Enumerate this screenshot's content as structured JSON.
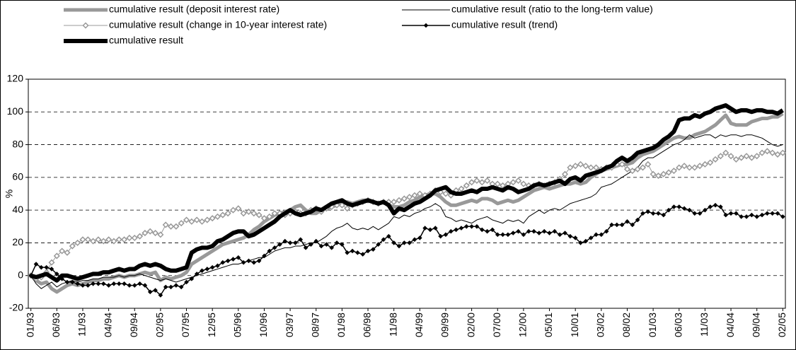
{
  "chart_data": {
    "type": "line",
    "y_label": "%",
    "ylim": [
      -20,
      120
    ],
    "yticks": [
      -20,
      0,
      20,
      40,
      60,
      80,
      100,
      120
    ],
    "grid": true,
    "categories": [
      "01/93",
      null,
      null,
      null,
      null,
      "06/93",
      null,
      null,
      null,
      null,
      "11/93",
      null,
      null,
      null,
      null,
      "04/94",
      null,
      null,
      null,
      null,
      "09/94",
      null,
      null,
      null,
      null,
      "02/95",
      null,
      null,
      null,
      null,
      "07/95",
      null,
      null,
      null,
      null,
      "12/95",
      null,
      null,
      null,
      null,
      "05/96",
      null,
      null,
      null,
      null,
      "10/96",
      null,
      null,
      null,
      null,
      "03/97",
      null,
      null,
      null,
      null,
      "08/97",
      null,
      null,
      null,
      null,
      "01/98",
      null,
      null,
      null,
      null,
      "06/98",
      null,
      null,
      null,
      null,
      "11/98",
      null,
      null,
      null,
      null,
      "04/99",
      null,
      null,
      null,
      null,
      "09/99",
      null,
      null,
      null,
      null,
      "02/00",
      null,
      null,
      null,
      null,
      "07/00",
      null,
      null,
      null,
      null,
      "12/00",
      null,
      null,
      null,
      null,
      "05/01",
      null,
      null,
      null,
      null,
      "10/01",
      null,
      null,
      null,
      null,
      "03/02",
      null,
      null,
      null,
      null,
      "08/02",
      null,
      null,
      null,
      null,
      "01/03",
      null,
      null,
      null,
      null,
      "06/03",
      null,
      null,
      null,
      null,
      "11/03",
      null,
      null,
      null,
      null,
      "04/04",
      null,
      null,
      null,
      null,
      "09/04",
      null,
      null,
      null,
      null,
      "02/05"
    ],
    "series": [
      {
        "name": "cumulative result (deposit interest rate)",
        "color": "#999999",
        "width": 5,
        "marker": "none",
        "values": [
          0,
          -3,
          -5,
          -4,
          -8,
          -10,
          -8,
          -6,
          -5,
          -6,
          -5,
          -4,
          -3,
          -3,
          -2,
          -2,
          -1,
          0,
          -1,
          0,
          0,
          1,
          2,
          1,
          2,
          -3,
          -1,
          -2,
          -1,
          0,
          2,
          7,
          9,
          11,
          13,
          15,
          17,
          19,
          20,
          21,
          22,
          23,
          25,
          28,
          30,
          33,
          35,
          37,
          38,
          39,
          40,
          42,
          43,
          40,
          38,
          38,
          40,
          41,
          42,
          43,
          44,
          45,
          44,
          45,
          46,
          46,
          45,
          44,
          45,
          43,
          42,
          42,
          43,
          45,
          46,
          48,
          49,
          50,
          50,
          48,
          45,
          43,
          43,
          44,
          45,
          46,
          45,
          47,
          47,
          46,
          44,
          45,
          46,
          45,
          46,
          48,
          50,
          52,
          53,
          54,
          53,
          54,
          55,
          56,
          56,
          57,
          56,
          57,
          60,
          62,
          64,
          65,
          66,
          67,
          68,
          68,
          69,
          72,
          74,
          75,
          76,
          78,
          80,
          82,
          84,
          85,
          84,
          84,
          86,
          87,
          88,
          90,
          92,
          95,
          98,
          93,
          92,
          92,
          92,
          94,
          95,
          96,
          96,
          97,
          97,
          99
        ]
      },
      {
        "name": "cumulative result (ratio to the long-term value)",
        "color": "#000000",
        "width": 1,
        "marker": "none",
        "values": [
          0,
          -5,
          -8,
          -6,
          -4,
          -7,
          -5,
          -4,
          -3,
          -4,
          -3,
          -3,
          -2,
          -2,
          -1,
          -1,
          -1,
          0,
          -1,
          0,
          0,
          1,
          0,
          -1,
          -2,
          -3,
          -2,
          -3,
          -4,
          -3,
          -2,
          -1,
          0,
          1,
          2,
          3,
          4,
          5,
          6,
          7,
          7,
          8,
          9,
          10,
          11,
          11,
          13,
          15,
          16,
          17,
          17,
          18,
          18,
          19,
          20,
          20,
          22,
          24,
          27,
          29,
          30,
          32,
          29,
          28,
          29,
          28,
          30,
          28,
          30,
          32,
          36,
          35,
          37,
          36,
          38,
          39,
          41,
          42,
          44,
          42,
          36,
          35,
          33,
          34,
          33,
          32,
          34,
          35,
          36,
          34,
          33,
          32,
          34,
          33,
          34,
          32,
          36,
          38,
          40,
          38,
          40,
          41,
          40,
          42,
          44,
          45,
          46,
          47,
          48,
          50,
          54,
          55,
          56,
          58,
          60,
          62,
          64,
          66,
          70,
          72,
          72,
          74,
          76,
          78,
          80,
          81,
          83,
          86,
          84,
          85,
          86,
          86,
          84,
          86,
          85,
          86,
          86,
          85,
          86,
          86,
          85,
          84,
          82,
          80,
          79,
          80
        ]
      },
      {
        "name": "cumulative result (change in 10-year interest rate)",
        "color": "#999999",
        "width": 1,
        "marker": "diamond-open",
        "values": [
          0,
          -2,
          -1,
          2,
          8,
          12,
          15,
          14,
          18,
          20,
          22,
          22,
          21,
          22,
          21,
          22,
          21,
          22,
          22,
          23,
          23,
          24,
          26,
          27,
          26,
          25,
          31,
          30,
          30,
          32,
          34,
          33,
          34,
          33,
          34,
          35,
          36,
          37,
          38,
          40,
          41,
          38,
          39,
          38,
          37,
          35,
          36,
          38,
          38,
          37,
          38,
          39,
          38,
          38,
          40,
          41,
          39,
          41,
          42,
          43,
          43,
          41,
          43,
          44,
          45,
          46,
          45,
          44,
          45,
          45,
          45,
          46,
          47,
          48,
          49,
          50,
          49,
          50,
          52,
          51,
          50,
          49,
          52,
          53,
          55,
          57,
          58,
          57,
          58,
          56,
          56,
          55,
          56,
          57,
          58,
          56,
          55,
          55,
          56,
          55,
          56,
          57,
          59,
          62,
          66,
          67,
          68,
          67,
          66,
          66,
          65,
          66,
          66,
          68,
          68,
          65,
          64,
          65,
          66,
          68,
          62,
          61,
          62,
          63,
          64,
          66,
          67,
          66,
          66,
          67,
          68,
          69,
          71,
          73,
          75,
          73,
          71,
          72,
          73,
          72,
          73,
          75,
          76,
          75,
          74,
          75
        ]
      },
      {
        "name": "cumulative result (trend)",
        "color": "#000000",
        "width": 1.5,
        "marker": "diamond",
        "values": [
          0,
          7,
          5,
          5,
          4,
          1,
          -2,
          -4,
          -4,
          -5,
          -6,
          -6,
          -5,
          -5,
          -5,
          -6,
          -5,
          -5,
          -5,
          -6,
          -6,
          -5,
          -6,
          -10,
          -9,
          -12,
          -7,
          -7,
          -6,
          -7,
          -4,
          -2,
          1,
          3,
          4,
          5,
          6,
          8,
          9,
          10,
          11,
          8,
          9,
          8,
          9,
          12,
          15,
          17,
          19,
          21,
          20,
          20,
          22,
          17,
          19,
          21,
          18,
          19,
          17,
          20,
          19,
          14,
          15,
          14,
          13,
          15,
          16,
          19,
          22,
          24,
          20,
          18,
          20,
          20,
          22,
          23,
          29,
          28,
          29,
          24,
          25,
          27,
          28,
          29,
          30,
          30,
          30,
          28,
          27,
          28,
          25,
          25,
          25,
          26,
          27,
          25,
          27,
          27,
          26,
          27,
          26,
          27,
          25,
          26,
          24,
          23,
          20,
          21,
          23,
          25,
          25,
          27,
          31,
          31,
          31,
          33,
          31,
          34,
          38,
          39,
          38,
          38,
          37,
          40,
          42,
          42,
          41,
          40,
          38,
          38,
          40,
          42,
          43,
          42,
          37,
          38,
          38,
          36,
          36,
          37,
          36,
          37,
          38,
          38,
          38,
          36
        ]
      },
      {
        "name": "cumulative result",
        "color": "#000000",
        "width": 6,
        "marker": "none",
        "values": [
          0,
          -1,
          0,
          1,
          -1,
          -3,
          0,
          0,
          -1,
          -2,
          -1,
          0,
          1,
          1,
          2,
          2,
          3,
          4,
          3,
          4,
          4,
          6,
          7,
          6,
          7,
          6,
          4,
          3,
          3,
          4,
          5,
          14,
          16,
          17,
          17,
          18,
          21,
          22,
          24,
          26,
          27,
          27,
          24,
          25,
          27,
          29,
          31,
          33,
          36,
          38,
          40,
          38,
          37,
          38,
          39,
          41,
          40,
          42,
          44,
          45,
          46,
          44,
          43,
          44,
          45,
          46,
          45,
          44,
          45,
          43,
          38,
          41,
          40,
          42,
          44,
          45,
          47,
          49,
          52,
          53,
          54,
          51,
          50,
          50,
          51,
          52,
          51,
          53,
          53,
          54,
          53,
          52,
          54,
          53,
          51,
          52,
          53,
          55,
          56,
          55,
          56,
          57,
          58,
          56,
          59,
          60,
          58,
          61,
          62,
          63,
          64,
          66,
          67,
          70,
          72,
          70,
          72,
          75,
          76,
          77,
          78,
          80,
          83,
          85,
          88,
          95,
          96,
          96,
          98,
          97,
          99,
          100,
          102,
          103,
          104,
          102,
          100,
          101,
          101,
          100,
          101,
          101,
          100,
          100,
          99,
          101
        ]
      }
    ]
  }
}
